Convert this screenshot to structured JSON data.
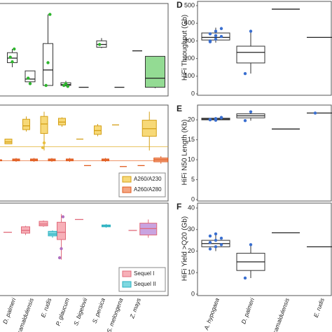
{
  "chart_data": [
    {
      "type": "box",
      "ylim": [
        0,
        100
      ],
      "series": [
        {
          "color": "#333333",
          "fill": "#ffffff",
          "fills": [
            null,
            null,
            null,
            null,
            null,
            null,
            null,
            null,
            null,
            "#93db93"
          ],
          "point_color": "#2db52d",
          "values": [
            [
              5,
              5,
              5,
              5,
              5
            ],
            [
              30,
              35,
              40,
              46,
              50
            ],
            [
              12,
              14,
              17,
              26,
              26
            ],
            [
              10,
              10,
              27,
              56,
              88
            ],
            [
              9,
              10,
              11,
              13,
              15
            ],
            [
              8,
              8,
              8,
              8,
              8
            ],
            [
              51,
              52,
              55,
              59,
              62
            ],
            [
              8,
              8,
              8,
              8,
              8
            ],
            [
              48,
              48,
              48,
              48,
              48
            ],
            [
              7,
              8,
              18,
              42,
              42
            ]
          ],
          "points": [
            [],
            [
              41,
              36,
              50
            ],
            [
              18,
              12
            ],
            [
              10,
              35,
              88
            ],
            [
              10,
              12,
              9
            ],
            [],
            [
              55
            ],
            [],
            [],
            []
          ]
        }
      ]
    },
    {
      "type": "box",
      "ylim": [
        0,
        100
      ],
      "legend": "lower right",
      "hlines": [
        {
          "value": 56,
          "color": "#e0b030"
        },
        {
          "value": 41,
          "color": "#e8743b"
        }
      ],
      "series": [
        {
          "name": "A260/A230",
          "color": "#d4a017",
          "fill": "#f7d978",
          "point_color": "#e8c040",
          "values": [
            null,
            [
              59,
              59,
              61,
              64,
              64
            ],
            [
              72,
              74,
              78,
              85,
              88
            ],
            [
              52,
              70,
              80,
              88,
              93
            ],
            [
              77,
              79,
              82,
              86,
              87
            ],
            [
              64,
              64,
              64,
              64,
              64
            ],
            [
              67,
              69,
              73,
              78,
              80
            ],
            [
              79,
              79,
              79,
              79,
              79
            ],
            null,
            [
              52,
              67,
              75,
              84,
              93
            ]
          ],
          "points": [
            [],
            [],
            [],
            [
              55,
              60
            ],
            [],
            [],
            [],
            [],
            [],
            []
          ]
        },
        {
          "name": "A260/A280",
          "color": "#e05a1c",
          "fill": "#f4a582",
          "point_color": "#e8743b",
          "values": [
            [
              40,
              41,
              42,
              42,
              43
            ],
            [
              40,
              41,
              42,
              43,
              44
            ],
            [
              40,
              41,
              42,
              43,
              44
            ],
            [
              40,
              41,
              42,
              43,
              44
            ],
            [
              40,
              41,
              42,
              43,
              44
            ],
            [
              36,
              36,
              36,
              36,
              36
            ],
            [
              40,
              41,
              42,
              43,
              44
            ],
            [
              35,
              35,
              35,
              35,
              35
            ],
            [
              36,
              36,
              36,
              36,
              36
            ],
            [
              38,
              40,
              42,
              44,
              46
            ]
          ],
          "points": [
            [],
            [],
            [],
            [],
            [],
            [],
            [],
            [],
            [],
            []
          ]
        }
      ]
    },
    {
      "type": "box",
      "ylim": [
        0,
        100
      ],
      "legend": "lower right",
      "categories": [
        null,
        "D. palmeri",
        "E. camaldulensis",
        "E. rudis",
        "P. glaucum",
        "S. bigelovii",
        "S. persica",
        "S. melongena",
        "Z. mays",
        null
      ],
      "series": [
        {
          "name": "Sequel I",
          "color": "#e06a7a",
          "fill": "#f7b0b8",
          "fills": [
            null,
            null,
            null,
            null,
            null,
            null,
            null,
            null,
            null,
            "#c9a3e0"
          ],
          "point_color": "#b070c0",
          "values": [
            null,
            [
              68,
              68,
              68,
              68,
              68
            ],
            [
              65,
              67,
              70,
              74,
              75
            ],
            [
              74,
              75,
              77,
              80,
              81
            ],
            [
              38,
              60,
              68,
              79,
              88
            ],
            [
              82,
              82,
              82,
              82,
              82
            ],
            null,
            null,
            [
              70,
              70,
              70,
              70,
              70
            ],
            [
              62,
              65,
              72,
              78,
              82
            ]
          ],
          "points": [
            [],
            [],
            [],
            [],
            [
              40,
              50,
              85
            ],
            [],
            [],
            [],
            [],
            []
          ]
        },
        {
          "name": "Sequel II",
          "color": "#2ab0c0",
          "fill": "#7fd8e0",
          "point_color": "#2ab0c0",
          "values": [
            null,
            null,
            null,
            [
              62,
              64,
              66,
              69,
              70
            ],
            null,
            null,
            [
              73,
              74,
              75,
              76,
              77
            ],
            null,
            null,
            null
          ],
          "points": [
            [],
            [],
            [],
            [],
            [],
            [],
            [],
            [],
            [],
            []
          ]
        }
      ]
    },
    {
      "type": "box",
      "title": "D",
      "ylabel": "HiFi Throughput (Gb)",
      "ylim": [
        0,
        500
      ],
      "yticks": [
        0,
        100,
        200,
        300,
        400,
        500
      ],
      "grid": false,
      "series": [
        {
          "color": "#333333",
          "fill": "#ffffff",
          "point_color": "#3a6fd0",
          "values": [
            [
              290,
              305,
              320,
              345,
              375
            ],
            [
              115,
              175,
              235,
              270,
              355
            ],
            [
              480,
              480,
              480,
              480,
              480
            ],
            [
              320,
              320,
              320,
              320,
              320
            ]
          ],
          "points": [
            [
              300,
              310,
              325,
              340,
              355,
              370,
              295,
              330
            ],
            [
              115,
              355
            ],
            [],
            []
          ]
        }
      ]
    },
    {
      "type": "box",
      "title": "E",
      "ylabel": "HiFi N50 Length (Kb)",
      "ylim": [
        0,
        23.7
      ],
      "yticks": [
        0,
        5,
        10,
        15,
        20
      ],
      "grid": false,
      "series": [
        {
          "color": "#333333",
          "fill": "#ffffff",
          "point_color": "#3a6fd0",
          "values": [
            [
              19.9,
              20,
              20.2,
              20.4,
              20.6
            ],
            [
              19.8,
              20.5,
              21,
              21.5,
              22
            ],
            [
              17.7,
              17.7,
              17.7,
              17.7,
              17.7
            ],
            [
              21.7,
              21.7,
              21.7,
              21.7,
              21.7
            ]
          ],
          "points": [
            [
              20,
              20.3,
              20.5,
              20.1,
              19.9,
              20.6
            ],
            [
              19.8,
              22
            ],
            [],
            [
              21.7
            ]
          ]
        }
      ]
    },
    {
      "type": "box",
      "title": "F",
      "ylabel": "HiFi Yield >Q20 (Gb)",
      "ylim": [
        0,
        40
      ],
      "yticks": [
        0,
        10,
        20,
        30,
        40
      ],
      "grid": false,
      "categories": [
        "A. hypogaea",
        "D. palmeri",
        "E. camaldulensis",
        "E. rudis"
      ],
      "series": [
        {
          "color": "#333333",
          "fill": "#ffffff",
          "point_color": "#3a6fd0",
          "values": [
            [
              20,
              22,
              23.5,
              25,
              28
            ],
            [
              7.5,
              11,
              15,
              19,
              23
            ],
            [
              28.5,
              28.5,
              28.5,
              28.5,
              28.5
            ],
            [
              22,
              22,
              22,
              22,
              22
            ]
          ],
          "points": [
            [
              21,
              22,
              23,
              24,
              25,
              26,
              27,
              28
            ],
            [
              7.5,
              23
            ],
            [],
            []
          ]
        }
      ]
    }
  ]
}
